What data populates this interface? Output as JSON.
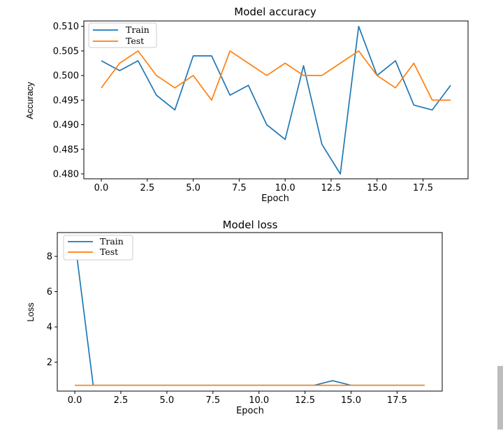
{
  "colors": {
    "train": "#1f77b4",
    "test": "#ff7f0e"
  },
  "chart_data": [
    {
      "type": "line",
      "title": "Model accuracy",
      "xlabel": "Epoch",
      "ylabel": "Accuracy",
      "xlim": [
        -0.95,
        19.95
      ],
      "ylim": [
        0.479,
        0.5111
      ],
      "xticks": [
        0,
        2.5,
        5,
        7.5,
        10,
        12.5,
        15,
        17.5
      ],
      "xtick_labels": [
        "0.0",
        "2.5",
        "5.0",
        "7.5",
        "10.0",
        "12.5",
        "15.0",
        "17.5"
      ],
      "yticks": [
        0.48,
        0.485,
        0.49,
        0.495,
        0.5,
        0.505,
        0.51
      ],
      "ytick_labels": [
        "0.480",
        "0.485",
        "0.490",
        "0.495",
        "0.500",
        "0.505",
        "0.510"
      ],
      "legend_position": "top-left",
      "series": [
        {
          "name": "Train",
          "x": [
            0,
            1,
            2,
            3,
            4,
            5,
            6,
            7,
            8,
            9,
            10,
            11,
            12,
            13,
            14,
            15,
            16,
            17,
            18,
            19
          ],
          "values": [
            0.503,
            0.501,
            0.503,
            0.496,
            0.493,
            0.504,
            0.504,
            0.496,
            0.498,
            0.49,
            0.487,
            0.502,
            0.486,
            0.48,
            0.51,
            0.5,
            0.503,
            0.494,
            0.493,
            0.498
          ]
        },
        {
          "name": "Test",
          "x": [
            0,
            1,
            2,
            3,
            4,
            5,
            6,
            7,
            8,
            9,
            10,
            11,
            12,
            13,
            14,
            15,
            16,
            17,
            18,
            19
          ],
          "values": [
            0.4975,
            0.5025,
            0.505,
            0.5,
            0.4975,
            0.5,
            0.495,
            0.505,
            0.5025,
            0.5,
            0.5025,
            0.5,
            0.5,
            0.5025,
            0.505,
            0.5,
            0.4975,
            0.5025,
            0.495,
            0.495
          ]
        }
      ]
    },
    {
      "type": "line",
      "title": "Model loss",
      "xlabel": "Epoch",
      "ylabel": "Loss",
      "xlim": [
        -0.95,
        19.95
      ],
      "ylim": [
        0.36,
        9.35
      ],
      "xticks": [
        0,
        2.5,
        5,
        7.5,
        10,
        12.5,
        15,
        17.5
      ],
      "xtick_labels": [
        "0.0",
        "2.5",
        "5.0",
        "7.5",
        "10.0",
        "12.5",
        "15.0",
        "17.5"
      ],
      "yticks": [
        2,
        4,
        6,
        8
      ],
      "ytick_labels": [
        "2",
        "4",
        "6",
        "8"
      ],
      "legend_position": "top-left",
      "series": [
        {
          "name": "Train",
          "x": [
            0,
            1,
            2,
            3,
            4,
            5,
            6,
            7,
            8,
            9,
            10,
            11,
            12,
            13,
            14,
            15,
            16,
            17,
            18,
            19
          ],
          "values": [
            8.95,
            0.69,
            0.69,
            0.69,
            0.69,
            0.69,
            0.69,
            0.69,
            0.69,
            0.69,
            0.69,
            0.69,
            0.69,
            0.69,
            0.95,
            0.69,
            0.69,
            0.69,
            0.69,
            0.69
          ]
        },
        {
          "name": "Test",
          "x": [
            0,
            1,
            2,
            3,
            4,
            5,
            6,
            7,
            8,
            9,
            10,
            11,
            12,
            13,
            14,
            15,
            16,
            17,
            18,
            19
          ],
          "values": [
            0.69,
            0.69,
            0.69,
            0.69,
            0.69,
            0.69,
            0.69,
            0.69,
            0.69,
            0.69,
            0.69,
            0.69,
            0.69,
            0.69,
            0.69,
            0.69,
            0.69,
            0.69,
            0.69,
            0.69
          ]
        }
      ]
    }
  ]
}
